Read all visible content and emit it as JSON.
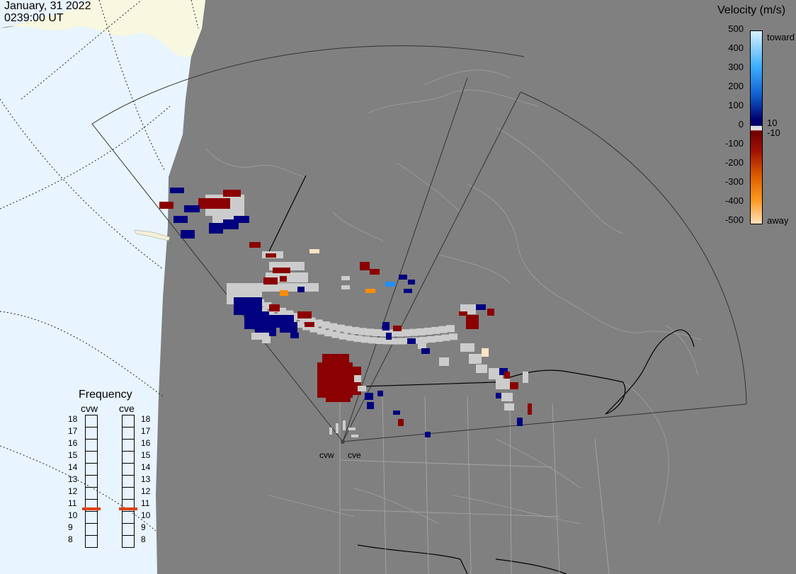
{
  "header": {
    "date": "January, 31 2022",
    "time": "0239:00 UT"
  },
  "legend": {
    "title": "Velocity (m/s)",
    "ticks": [
      "500",
      "400",
      "300",
      "200",
      "100",
      "0",
      "-100",
      "-200",
      "-300",
      "-400",
      "-500"
    ],
    "toward_label": "toward",
    "away_label": "away",
    "inner_plus": "10",
    "inner_minus": "-10",
    "colors": {
      "toward_light": "#c8e8ff",
      "toward_mid": "#1e90ff",
      "toward_dark": "#000080",
      "away_dark": "#8b0000",
      "away_mid": "#ff8c00",
      "away_light": "#ffe4c4",
      "ground_scatter": "#cccccc"
    }
  },
  "frequency": {
    "title": "Frequency",
    "radars": [
      {
        "label": "cvw",
        "freq_mhz": 11
      },
      {
        "label": "cve",
        "freq_mhz": 11
      }
    ],
    "scale": [
      "18",
      "17",
      "16",
      "15",
      "14",
      "13",
      "12",
      "11",
      "10",
      "9",
      "8"
    ]
  },
  "sites": {
    "cvw": "cvw",
    "cve": "cve"
  }
}
